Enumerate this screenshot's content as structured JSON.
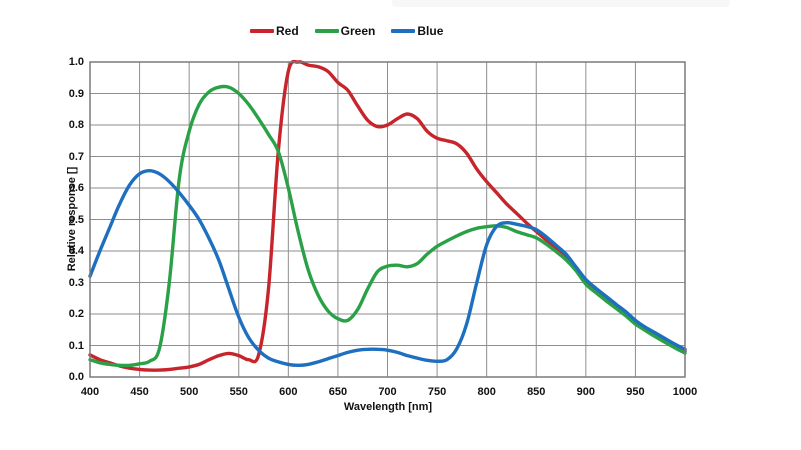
{
  "page": {
    "background": "#ffffff",
    "top_strip_color": "#f7f7f7"
  },
  "legend": {
    "items": [
      {
        "label": "Red",
        "color": "#c8242b"
      },
      {
        "label": "Green",
        "color": "#2ba147"
      },
      {
        "label": "Blue",
        "color": "#1e6fc0"
      }
    ]
  },
  "axes": {
    "ylabel": "Relative response []",
    "xlabel": "Wavelength [nm]",
    "y_tick_labels": [
      "1.0",
      "0.9",
      "0.8",
      "0.7",
      "0.6",
      "0.5",
      "0.4",
      "0.3",
      "0.2",
      "0.1",
      "0.0"
    ],
    "x_tick_labels": [
      "400",
      "450",
      "500",
      "550",
      "600",
      "650",
      "700",
      "750",
      "800",
      "850",
      "900",
      "950",
      "1000"
    ]
  },
  "colors": {
    "grid": "#8e8e8e",
    "border": "#7a7a7a",
    "text": "#111111"
  },
  "chart_data": {
    "type": "line",
    "title": "",
    "xlabel": "Wavelength [nm]",
    "ylabel": "Relative response []",
    "xlim": [
      400,
      1000
    ],
    "ylim": [
      0.0,
      1.0
    ],
    "xticks": [
      400,
      450,
      500,
      550,
      600,
      650,
      700,
      750,
      800,
      850,
      900,
      950,
      1000
    ],
    "yticks": [
      0.0,
      0.1,
      0.2,
      0.3,
      0.4,
      0.5,
      0.6,
      0.7,
      0.8,
      0.9,
      1.0
    ],
    "grid": true,
    "legend_position": "top-center",
    "x": [
      400,
      410,
      420,
      430,
      440,
      450,
      460,
      470,
      480,
      490,
      500,
      510,
      520,
      530,
      540,
      550,
      560,
      570,
      580,
      590,
      600,
      610,
      620,
      630,
      640,
      650,
      660,
      670,
      680,
      690,
      700,
      710,
      720,
      730,
      740,
      750,
      760,
      770,
      780,
      790,
      800,
      810,
      820,
      830,
      840,
      850,
      860,
      870,
      880,
      890,
      900,
      910,
      920,
      930,
      940,
      950,
      960,
      970,
      980,
      990,
      1000
    ],
    "series": [
      {
        "name": "Red",
        "color": "#c8242b",
        "values": [
          0.07,
          0.055,
          0.045,
          0.035,
          0.028,
          0.024,
          0.022,
          0.022,
          0.024,
          0.028,
          0.032,
          0.04,
          0.055,
          0.068,
          0.075,
          0.068,
          0.055,
          0.07,
          0.28,
          0.72,
          0.97,
          1.0,
          0.99,
          0.985,
          0.97,
          0.935,
          0.91,
          0.86,
          0.815,
          0.795,
          0.8,
          0.82,
          0.835,
          0.82,
          0.78,
          0.758,
          0.75,
          0.74,
          0.71,
          0.66,
          0.62,
          0.585,
          0.55,
          0.52,
          0.49,
          0.462,
          0.435,
          0.41,
          0.385,
          0.345,
          0.305,
          0.275,
          0.25,
          0.225,
          0.2,
          0.172,
          0.152,
          0.134,
          0.116,
          0.098,
          0.082
        ]
      },
      {
        "name": "Green",
        "color": "#2ba147",
        "values": [
          0.055,
          0.045,
          0.04,
          0.037,
          0.037,
          0.042,
          0.05,
          0.09,
          0.3,
          0.63,
          0.78,
          0.865,
          0.905,
          0.92,
          0.92,
          0.9,
          0.865,
          0.82,
          0.77,
          0.715,
          0.6,
          0.46,
          0.34,
          0.26,
          0.21,
          0.185,
          0.18,
          0.215,
          0.28,
          0.335,
          0.352,
          0.355,
          0.35,
          0.36,
          0.39,
          0.415,
          0.432,
          0.448,
          0.462,
          0.472,
          0.477,
          0.48,
          0.475,
          0.462,
          0.452,
          0.442,
          0.422,
          0.398,
          0.372,
          0.338,
          0.295,
          0.268,
          0.243,
          0.219,
          0.195,
          0.168,
          0.148,
          0.128,
          0.11,
          0.092,
          0.076
        ]
      },
      {
        "name": "Blue",
        "color": "#1e6fc0",
        "values": [
          0.32,
          0.4,
          0.475,
          0.55,
          0.61,
          0.645,
          0.655,
          0.645,
          0.62,
          0.585,
          0.545,
          0.5,
          0.44,
          0.37,
          0.28,
          0.19,
          0.125,
          0.085,
          0.06,
          0.048,
          0.04,
          0.037,
          0.04,
          0.048,
          0.058,
          0.068,
          0.078,
          0.085,
          0.088,
          0.088,
          0.085,
          0.078,
          0.068,
          0.06,
          0.053,
          0.05,
          0.055,
          0.09,
          0.17,
          0.3,
          0.42,
          0.478,
          0.49,
          0.485,
          0.478,
          0.468,
          0.445,
          0.418,
          0.39,
          0.35,
          0.31,
          0.282,
          0.257,
          0.232,
          0.208,
          0.18,
          0.158,
          0.14,
          0.122,
          0.104,
          0.088
        ]
      }
    ]
  }
}
